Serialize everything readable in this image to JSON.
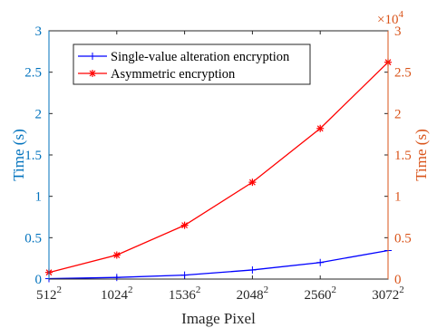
{
  "chart_data": {
    "type": "line",
    "xlabel": "Image Pixel",
    "x_ticks": [
      {
        "base": "512",
        "exp": "2"
      },
      {
        "base": "1024",
        "exp": "2"
      },
      {
        "base": "1536",
        "exp": "2"
      },
      {
        "base": "2048",
        "exp": "2"
      },
      {
        "base": "2560",
        "exp": "2"
      },
      {
        "base": "3072",
        "exp": "2"
      }
    ],
    "y_left": {
      "label": "Time (s)",
      "color": "#0072BD",
      "range": [
        0,
        3
      ],
      "ticks": [
        "0",
        "0.5",
        "1",
        "1.5",
        "2",
        "2.5",
        "3"
      ]
    },
    "y_right": {
      "label": "Time (s)",
      "color": "#D95319",
      "range": [
        0,
        3
      ],
      "ticks": [
        "0",
        "0.5",
        "1",
        "1.5",
        "2",
        "2.5",
        "3"
      ],
      "multiplier_base": "×10",
      "multiplier_exp": "4"
    },
    "series": [
      {
        "name": "Single-value alteration encryption",
        "axis": "left",
        "color": "#0000FF",
        "marker": "plus",
        "values": [
          0.005,
          0.02,
          0.048,
          0.11,
          0.2,
          0.345
        ]
      },
      {
        "name": "Asymmetric encryption",
        "axis": "right",
        "color": "#FF0000",
        "marker": "star",
        "values": [
          0.08,
          0.29,
          0.65,
          1.17,
          1.82,
          2.62
        ]
      }
    ],
    "legend_position": "top-left"
  }
}
